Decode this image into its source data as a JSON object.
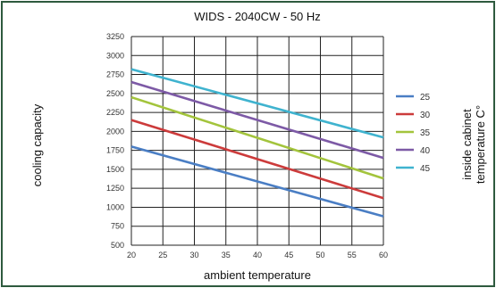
{
  "chart_data": {
    "type": "line",
    "title": "WIDS - 2040CW - 50 Hz",
    "xlabel": "ambient temperature",
    "ylabel": "cooling capacity",
    "legend_title": [
      "inside cabinet",
      "temperature C°"
    ],
    "legend_position": "right",
    "grid": true,
    "xlim": [
      20,
      60
    ],
    "ylim": [
      500,
      3250
    ],
    "x_ticks": [
      "20",
      "25",
      "30",
      "35",
      "40",
      "45",
      "50",
      "55",
      "60"
    ],
    "y_ticks": [
      "500",
      "750",
      "1000",
      "1250",
      "1500",
      "1750",
      "2000",
      "2250",
      "2500",
      "2750",
      "3000",
      "3250"
    ],
    "x": [
      20,
      60
    ],
    "series": [
      {
        "name": "25",
        "color": "#4a7ec4",
        "values": [
          1800,
          880
        ]
      },
      {
        "name": "30",
        "color": "#cc3b3b",
        "values": [
          2150,
          1120
        ]
      },
      {
        "name": "35",
        "color": "#a3c43c",
        "values": [
          2450,
          1380
        ]
      },
      {
        "name": "40",
        "color": "#7d5aa6",
        "values": [
          2650,
          1650
        ]
      },
      {
        "name": "45",
        "color": "#3fb3cf",
        "values": [
          2820,
          1920
        ]
      }
    ]
  }
}
